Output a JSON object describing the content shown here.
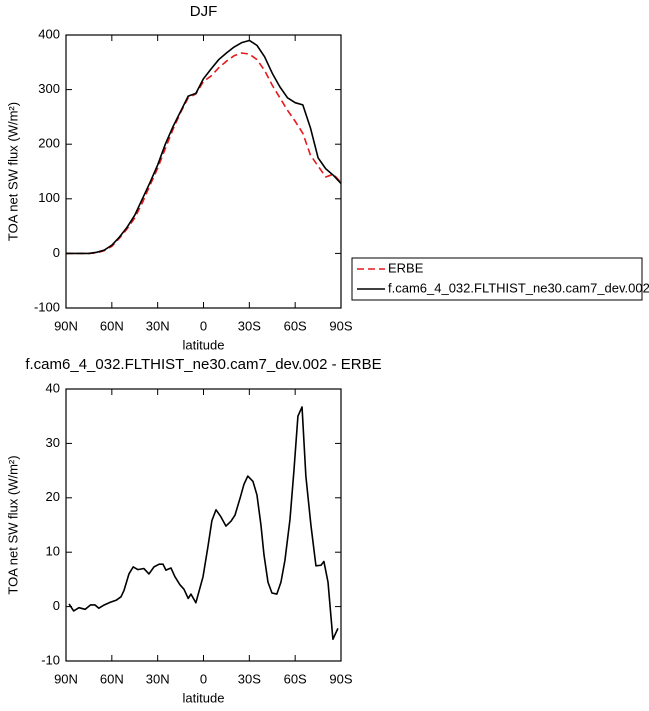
{
  "chart_data": [
    {
      "type": "line",
      "title": "DJF",
      "ylabel": "TOA net SW flux (W/m²)",
      "xlabel": "latitude",
      "x": [
        90,
        85,
        80,
        75,
        70,
        65,
        60,
        55,
        50,
        45,
        40,
        35,
        30,
        25,
        20,
        15,
        10,
        5,
        0,
        -5,
        -10,
        -15,
        -20,
        -25,
        -30,
        -35,
        -40,
        -45,
        -50,
        -55,
        -60,
        -65,
        -70,
        -75,
        -80,
        -85,
        -90
      ],
      "series": [
        {
          "name": "ERBE",
          "color": "#e41a1c",
          "dashed": true,
          "values": [
            0,
            0,
            0,
            0,
            1,
            5,
            13,
            28,
            45,
            65,
            93,
            125,
            156,
            192,
            227,
            258,
            285,
            292,
            315,
            325,
            340,
            352,
            362,
            367,
            365,
            355,
            335,
            308,
            285,
            262,
            242,
            220,
            180,
            160,
            140,
            145,
            130
          ]
        },
        {
          "name": "f.cam6_4_032.FLTHIST_ne30.cam7_dev.002",
          "color": "#000000",
          "dashed": false,
          "values": [
            0,
            0,
            0,
            0,
            2,
            6,
            15,
            30,
            48,
            70,
            100,
            130,
            162,
            200,
            232,
            260,
            288,
            293,
            320,
            338,
            355,
            367,
            378,
            386,
            390,
            381,
            360,
            330,
            305,
            285,
            276,
            272,
            230,
            175,
            155,
            143,
            128
          ]
        }
      ],
      "xlim": [
        90,
        -90
      ],
      "xticks": [
        {
          "value": 90,
          "label": "90N"
        },
        {
          "value": 60,
          "label": "60N"
        },
        {
          "value": 30,
          "label": "30N"
        },
        0,
        {
          "value": -30,
          "label": "30S"
        },
        {
          "value": -60,
          "label": "60S"
        },
        {
          "value": -90,
          "label": "90S"
        }
      ],
      "ylim": [
        -100,
        400
      ],
      "yticks": [
        -100,
        0,
        100,
        200,
        300,
        400
      ],
      "legend": "right"
    },
    {
      "type": "line",
      "title": "f.cam6_4_032.FLTHIST_ne30.cam7_dev.002 - ERBE",
      "ylabel": "TOA net SW flux (W/m²)",
      "xlabel": "latitude",
      "x": [
        88,
        85,
        81.5,
        77.5,
        74,
        71,
        68.5,
        65,
        61,
        57,
        54,
        52,
        48.8,
        46,
        43,
        39,
        35.7,
        32.4,
        29,
        26.5,
        24.6,
        21.3,
        18.7,
        15.4,
        12.8,
        10,
        8.2,
        5,
        0.3,
        -2.9,
        -5.5,
        -8.2,
        -11.4,
        -14.7,
        -18,
        -20.6,
        -24,
        -26.5,
        -29,
        -32.4,
        -35,
        -37.6,
        -39.6,
        -42.2,
        -44.8,
        -48,
        -50.7,
        -53.3,
        -56.6,
        -59.2,
        -61.8,
        -64.5,
        -67,
        -70.3,
        -73.6,
        -76.9,
        -78.8,
        -81.5,
        -84.7,
        -88
      ],
      "series": [
        {
          "color": "#000000",
          "dashed": false,
          "values": [
            0.5,
            -0.8,
            -0.2,
            -0.5,
            0.3,
            0.3,
            -0.3,
            0.3,
            0.8,
            1.2,
            1.8,
            3,
            6,
            7.3,
            6.8,
            7,
            6,
            7.3,
            7.8,
            7.8,
            6.7,
            7.1,
            5.5,
            4,
            3.2,
            1.5,
            2.3,
            0.7,
            5.5,
            11,
            15.8,
            17.8,
            16.5,
            14.8,
            15.7,
            16.8,
            20,
            22.5,
            24,
            23,
            20.5,
            15,
            9.5,
            4.5,
            2.5,
            2.3,
            4.5,
            8.5,
            16,
            25,
            35,
            36.7,
            24,
            15,
            7.5,
            7.6,
            8.3,
            4.5,
            -6,
            -4
          ]
        }
      ],
      "xlim": [
        90,
        -90
      ],
      "xticks": [
        {
          "value": 90,
          "label": "90N"
        },
        {
          "value": 60,
          "label": "60N"
        },
        {
          "value": 30,
          "label": "30N"
        },
        0,
        {
          "value": -30,
          "label": "30S"
        },
        {
          "value": -60,
          "label": "60S"
        },
        {
          "value": -90,
          "label": "90S"
        }
      ],
      "ylim": [
        -10,
        40
      ],
      "yticks": [
        -10,
        0,
        10,
        20,
        30,
        40
      ]
    }
  ]
}
